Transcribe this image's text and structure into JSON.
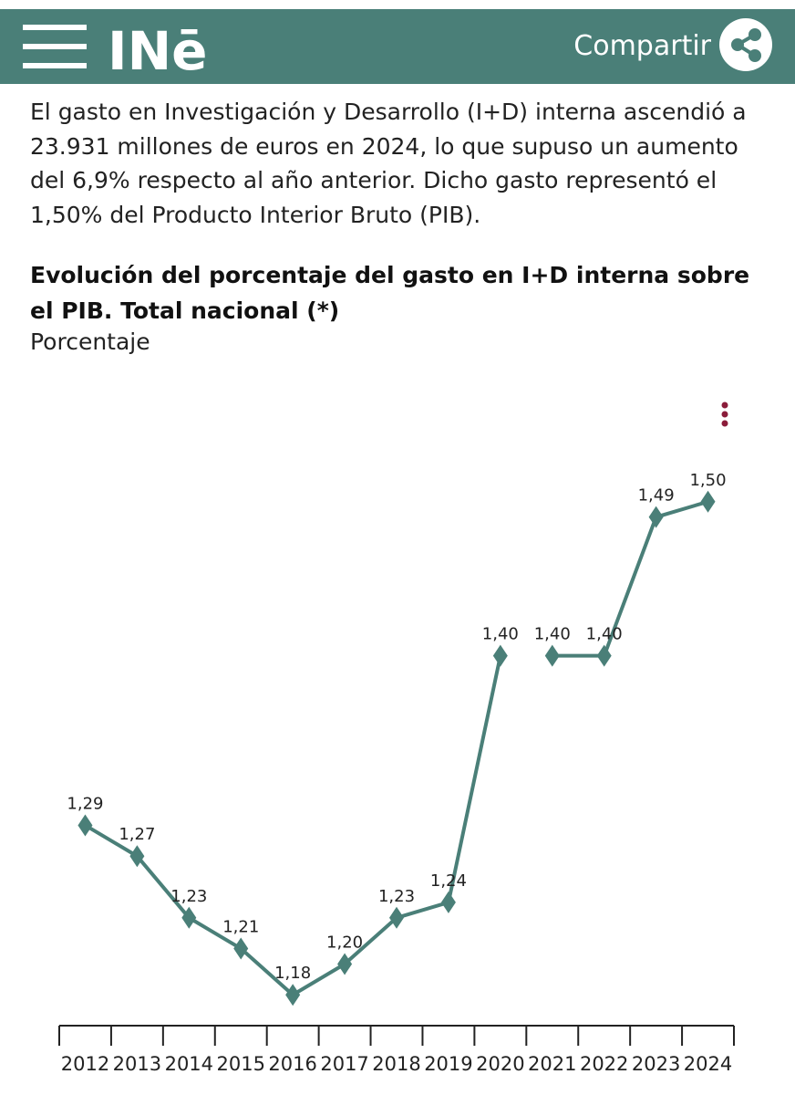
{
  "header": {
    "logo": "INē",
    "share": "Compartir"
  },
  "intro": "El gasto en Investigación y Desarrollo (I+D) interna ascendió a 23.931 millones de euros en 2024, lo que supuso un aumento del 6,9% respecto al año anterior. Dicho gasto representó el 1,50% del Producto Interior Bruto (PIB).",
  "chart_data": {
    "type": "line",
    "title": "Evolución del porcentaje del gasto en I+D interna sobre el PIB. Total nacional (*)",
    "subtitle": "Porcentaje",
    "categories": [
      "2012",
      "2013",
      "2014",
      "2015",
      "2016",
      "2017",
      "2018",
      "2019",
      "2020",
      "2021",
      "2022",
      "2023",
      "2024"
    ],
    "series": [
      {
        "color": "#4a7f78",
        "values": [
          1.29,
          1.27,
          1.23,
          1.21,
          1.18,
          1.2,
          1.23,
          1.24,
          1.4,
          null,
          null,
          null,
          null
        ],
        "value_labels": [
          "1,29",
          "1,27",
          "1,23",
          "1,21",
          "1,18",
          "1,20",
          "1,23",
          "1,24",
          "1,40",
          null,
          null,
          null,
          null
        ]
      },
      {
        "color": "#4a7f78",
        "values": [
          null,
          null,
          null,
          null,
          null,
          null,
          null,
          null,
          null,
          1.4,
          1.4,
          1.49,
          1.5
        ],
        "value_labels": [
          null,
          null,
          null,
          null,
          null,
          null,
          null,
          null,
          null,
          "1,40",
          "1,40",
          "1,49",
          "1,50"
        ]
      }
    ],
    "ylim": [
      1.16,
      1.52
    ]
  }
}
